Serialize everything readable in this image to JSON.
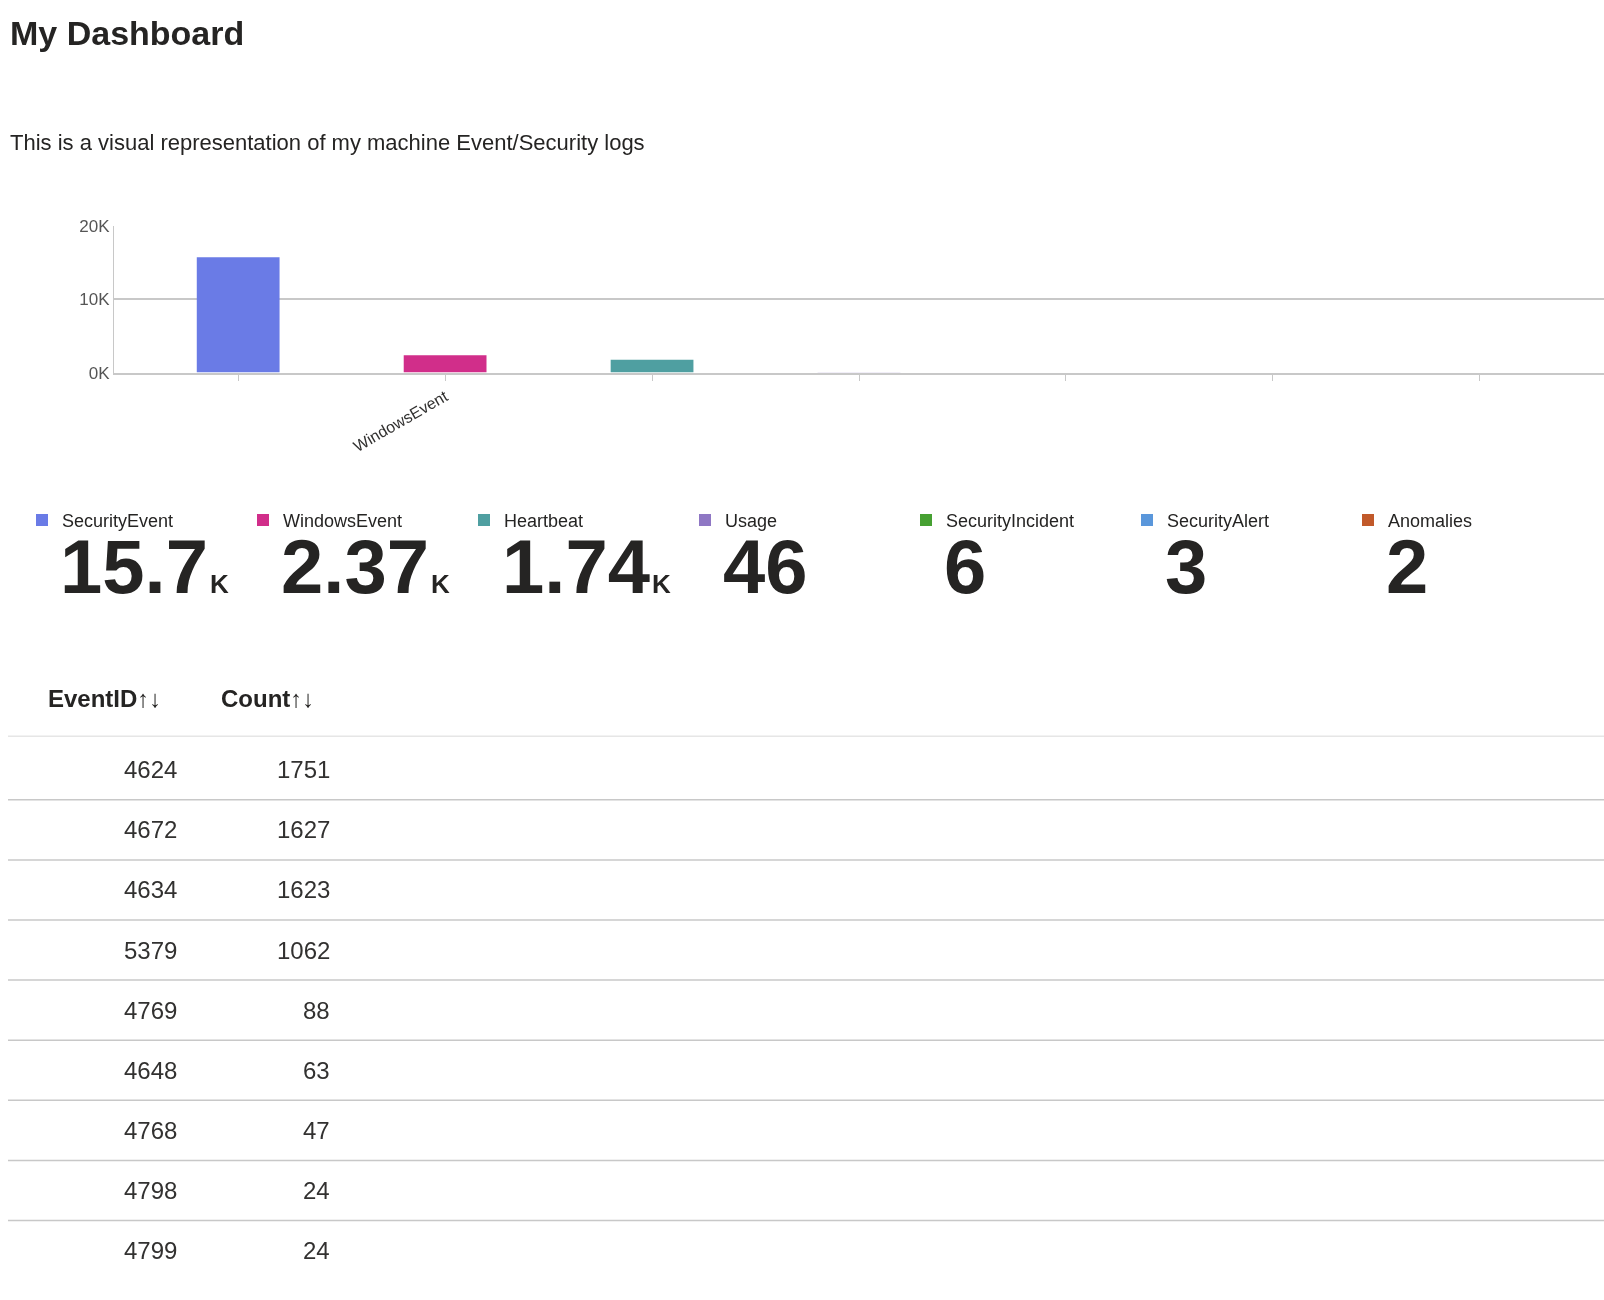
{
  "chart_data": [
    {
      "type": "bar",
      "title": "My Dashboard",
      "subtitle": "This is a visual representation of my machine Event/Security logs",
      "categories": [
        null,
        "WindowsEvent",
        null,
        null,
        null,
        null,
        null
      ],
      "series": [
        {
          "name": "SecurityEvent",
          "color": "#6a7be6",
          "values": [
            15700,
            null,
            null,
            null,
            null,
            null,
            null
          ],
          "value_labels": [
            "15.7K",
            null,
            null,
            null,
            null,
            null,
            null
          ]
        },
        {
          "name": "WindowsEvent",
          "color": "#d12e8a",
          "values": [
            null,
            2370,
            null,
            null,
            null,
            null,
            null
          ],
          "value_labels": [
            null,
            "2.37K",
            null,
            null,
            null,
            null,
            null
          ]
        },
        {
          "name": "Heartbeat",
          "color": "#4f9fa1",
          "values": [
            null,
            null,
            1740,
            null,
            null,
            null,
            null
          ],
          "value_labels": [
            null,
            null,
            "1.74K",
            null,
            null,
            null,
            null
          ]
        },
        {
          "name": "Usage",
          "color": "#8f77c4",
          "values": [
            null,
            null,
            null,
            46,
            null,
            null,
            null
          ],
          "value_labels": [
            null,
            null,
            null,
            "46",
            null,
            null,
            null
          ]
        },
        {
          "name": "SecurityIncident",
          "color": "#46a032",
          "values": [
            null,
            null,
            null,
            null,
            6,
            null,
            null
          ],
          "value_labels": [
            null,
            null,
            null,
            null,
            "6",
            null,
            null
          ]
        },
        {
          "name": "SecurityAlert",
          "color": "#5a97db",
          "values": [
            null,
            null,
            null,
            null,
            null,
            3,
            null
          ],
          "value_labels": [
            null,
            null,
            null,
            null,
            null,
            "3",
            null
          ]
        },
        {
          "name": "Anomalies",
          "color": "#c1592a",
          "values": [
            null,
            null,
            null,
            null,
            null,
            null,
            2
          ],
          "value_labels": [
            null,
            null,
            null,
            null,
            null,
            null,
            "2"
          ]
        }
      ],
      "ylim": [
        0,
        20000
      ],
      "yticks": [
        {
          "value": 0,
          "label": "0K"
        },
        {
          "value": 10000,
          "label": "10K"
        },
        {
          "value": 20000,
          "label": "20K"
        }
      ],
      "grid": "y",
      "legend": "bottom"
    },
    {
      "type": "other",
      "xlabel": "EventID↑↓",
      "ylabel": "Count↑↓",
      "categories": [
        "4624",
        "4672",
        "4634",
        "5379",
        "4769",
        "4648",
        "4768",
        "4798",
        "4799"
      ],
      "values": [
        1751,
        1627,
        1623,
        1062,
        88,
        63,
        47,
        24,
        24
      ],
      "data_labels": true
    }
  ]
}
